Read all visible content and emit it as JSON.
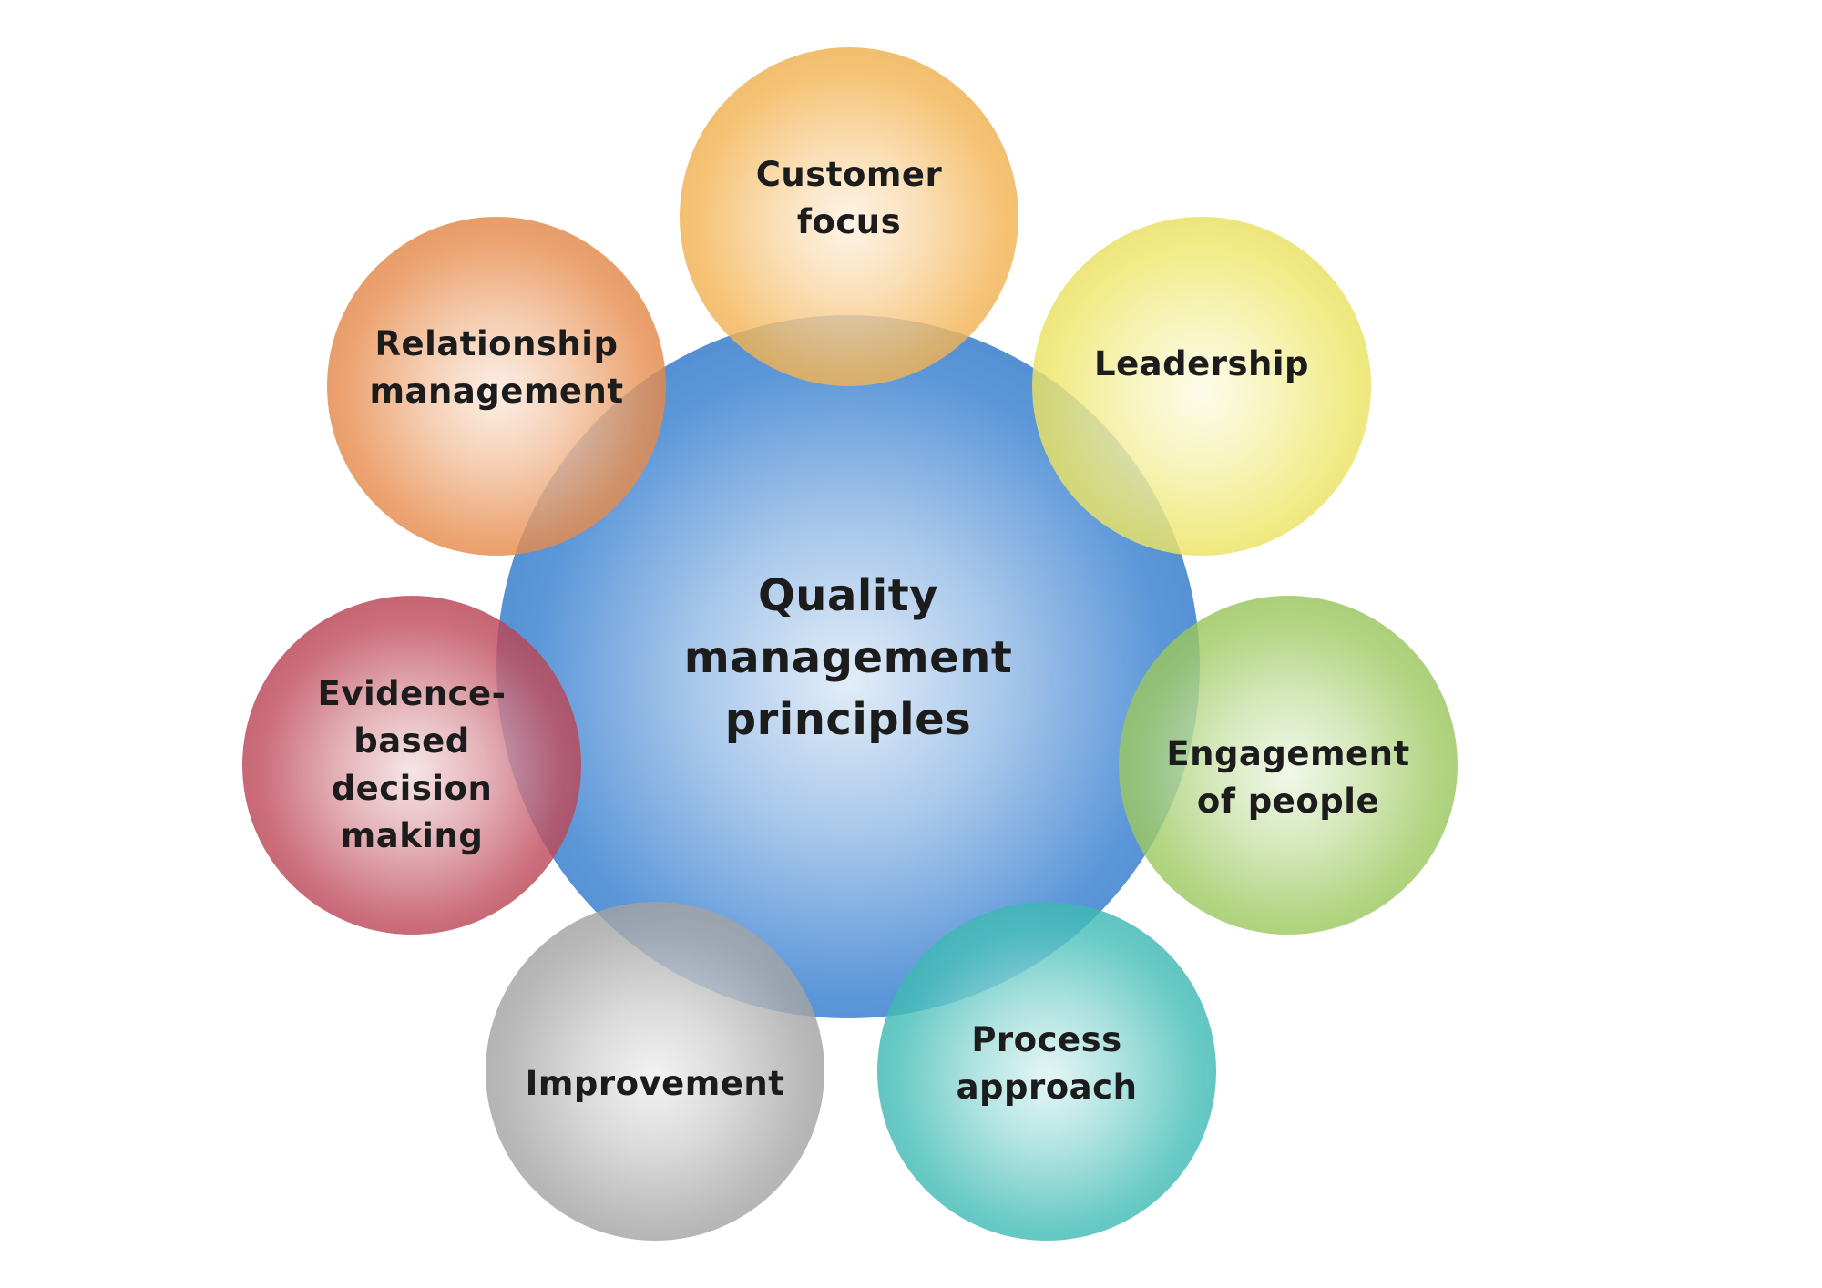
{
  "diagram": {
    "center": {
      "label": "Quality\nmanagement\nprinciples",
      "color": "#3f85d2"
    },
    "principles": [
      {
        "label": "Customer\nfocus",
        "color": "#f2a93b"
      },
      {
        "label": "Leadership",
        "color": "#ebe14e"
      },
      {
        "label": "Engagement\nof people",
        "color": "#8fc24a"
      },
      {
        "label": "Process\napproach",
        "color": "#27b3ad"
      },
      {
        "label": "Improvement",
        "color": "#9a9a9a"
      },
      {
        "label": "Evidence-\nbased\ndecision\nmaking",
        "color": "#b52e40"
      },
      {
        "label": "Relationship\nmanagement",
        "color": "#e47b32"
      }
    ]
  }
}
